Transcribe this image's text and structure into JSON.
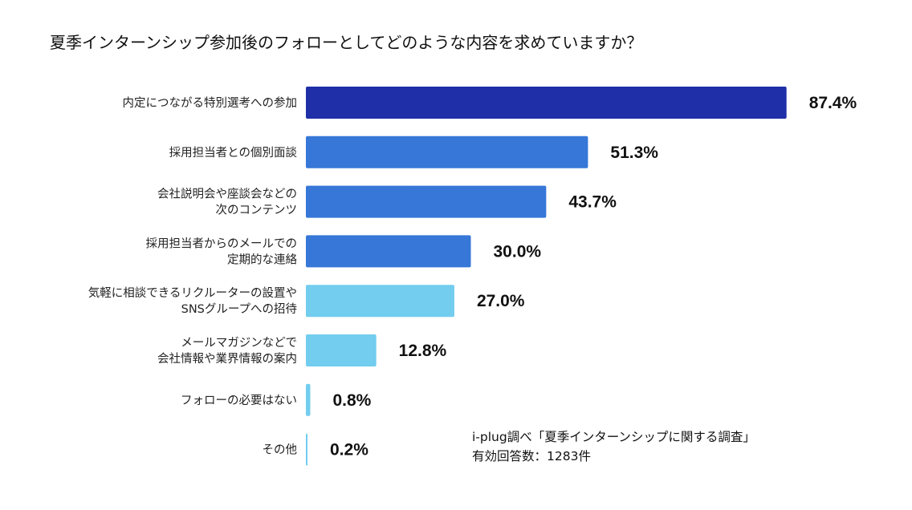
{
  "chart_data": {
    "type": "bar",
    "orientation": "horizontal",
    "title": "夏季インターンシップ参加後のフォローとしてどのような内容を求めていますか？",
    "xlabel": "",
    "ylabel": "",
    "xlim": [
      0,
      100
    ],
    "value_suffix": "%",
    "grid": false,
    "categories": [
      [
        "内定につながる特別選考への参加"
      ],
      [
        "採用担当者との個別面談"
      ],
      [
        "会社説明会や座談会などの",
        "次のコンテンツ"
      ],
      [
        "採用担当者からのメールでの",
        "定期的な連絡"
      ],
      [
        "気軽に相談できるリクルーターの設置や",
        "SNSグループへの招待"
      ],
      [
        "メールマガジンなどで",
        "会社情報や業界情報の案内"
      ],
      [
        "フォローの必要はない"
      ],
      [
        "その他"
      ]
    ],
    "values": [
      87.4,
      51.3,
      43.7,
      30.0,
      27.0,
      12.8,
      0.8,
      0.2
    ],
    "value_labels": [
      "87.4%",
      "51.3%",
      "43.7%",
      "30.0%",
      "27.0%",
      "12.8%",
      "0.8%",
      "0.2%"
    ],
    "bar_colors": [
      "#1e2fa8",
      "#3677d8",
      "#3677d8",
      "#3677d8",
      "#72cdee",
      "#72cdee",
      "#72cdee",
      "#72cdee"
    ]
  },
  "source_note": {
    "line1": "i-plug調べ「夏季インターンシップに関する調査」",
    "line2": "有効回答数：1283件"
  }
}
